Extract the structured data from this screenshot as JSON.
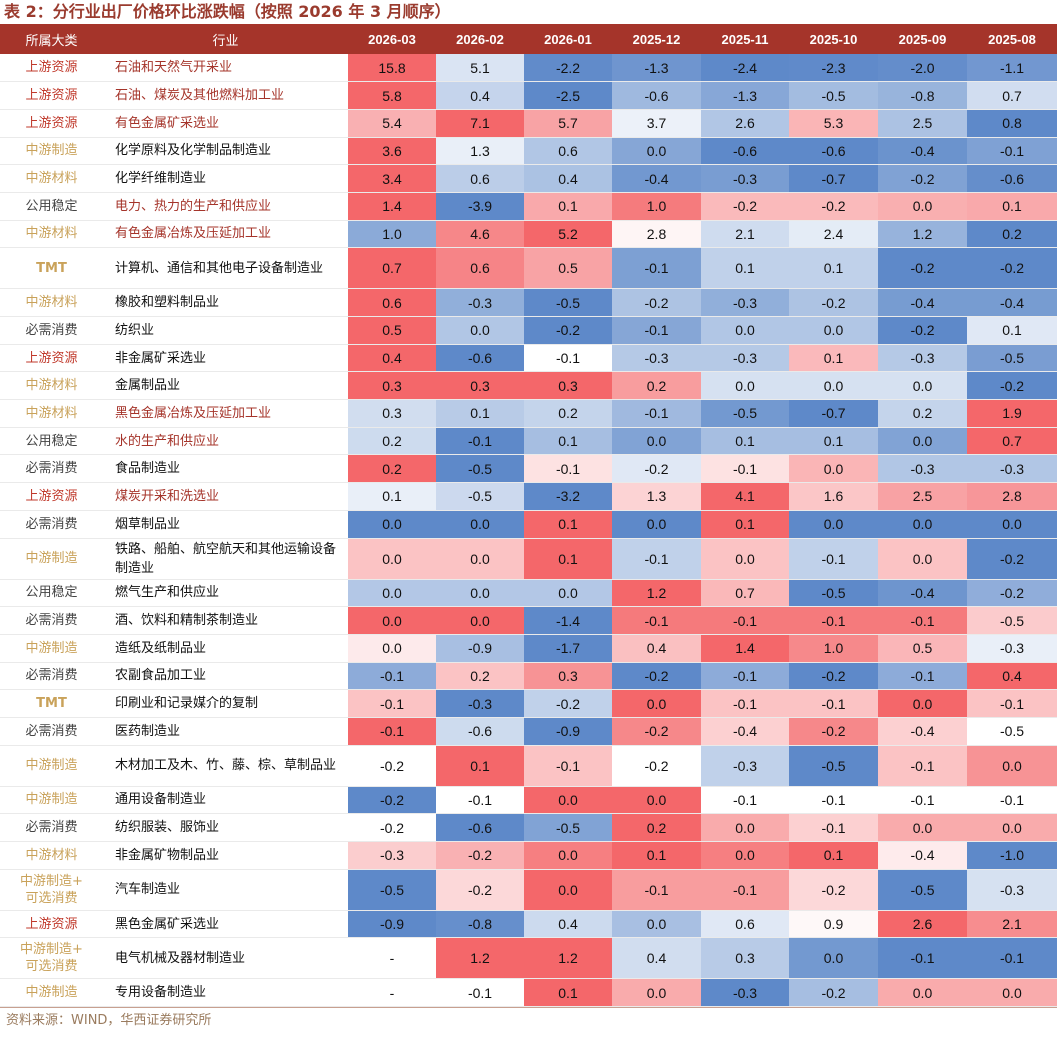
{
  "title": "表 2：分行业出厂价格环比涨跌幅（按照 2026 年 3 月顺序）",
  "footer": "资料来源：WIND，华西证券研究所",
  "colors": {
    "header_bg": "#a5342a",
    "positive_strong": "#f4676a",
    "negative_strong": "#5e89c9",
    "upstream_text": "#c0392b",
    "midstream_text": "#c9a25a"
  },
  "headers": {
    "category": "所属大类",
    "industry": "行业",
    "months": [
      "2026-03",
      "2026-02",
      "2026-01",
      "2025-12",
      "2025-11",
      "2025-10",
      "2025-09",
      "2025-08"
    ]
  },
  "rows": [
    {
      "category": "上游资源",
      "industry": "石油和天然气开采业",
      "values": [
        "15.8",
        "5.1",
        "-2.2",
        "-1.3",
        "-2.4",
        "-2.3",
        "-2.0",
        "-1.1"
      ]
    },
    {
      "category": "上游资源",
      "industry": "石油、煤炭及其他燃料加工业",
      "values": [
        "5.8",
        "0.4",
        "-2.5",
        "-0.6",
        "-1.3",
        "-0.5",
        "-0.8",
        "0.7"
      ]
    },
    {
      "category": "上游资源",
      "industry": "有色金属矿采选业",
      "values": [
        "5.4",
        "7.1",
        "5.7",
        "3.7",
        "2.6",
        "5.3",
        "2.5",
        "0.8"
      ]
    },
    {
      "category": "中游制造",
      "industry": "化学原料及化学制品制造业",
      "values": [
        "3.6",
        "1.3",
        "0.6",
        "0.0",
        "-0.6",
        "-0.6",
        "-0.4",
        "-0.1"
      ]
    },
    {
      "category": "中游材料",
      "industry": "化学纤维制造业",
      "values": [
        "3.4",
        "0.6",
        "0.4",
        "-0.4",
        "-0.3",
        "-0.7",
        "-0.2",
        "-0.6"
      ]
    },
    {
      "category": "公用稳定",
      "industry": "电力、热力的生产和供应业",
      "values": [
        "1.4",
        "-3.9",
        "0.1",
        "1.0",
        "-0.2",
        "-0.2",
        "0.0",
        "0.1"
      ]
    },
    {
      "category": "中游材料",
      "industry": "有色金属冶炼及压延加工业",
      "values": [
        "1.0",
        "4.6",
        "5.2",
        "2.8",
        "2.1",
        "2.4",
        "1.2",
        "0.2"
      ]
    },
    {
      "category": "TMT",
      "industry": "计算机、通信和其他电子设备制造业",
      "values": [
        "0.7",
        "0.6",
        "0.5",
        "-0.1",
        "0.1",
        "0.1",
        "-0.2",
        "-0.2"
      ]
    },
    {
      "category": "中游材料",
      "industry": "橡胶和塑料制品业",
      "values": [
        "0.6",
        "-0.3",
        "-0.5",
        "-0.2",
        "-0.3",
        "-0.2",
        "-0.4",
        "-0.4"
      ]
    },
    {
      "category": "必需消费",
      "industry": "纺织业",
      "values": [
        "0.5",
        "0.0",
        "-0.2",
        "-0.1",
        "0.0",
        "0.0",
        "-0.2",
        "0.1"
      ]
    },
    {
      "category": "上游资源",
      "industry": "非金属矿采选业",
      "values": [
        "0.4",
        "-0.6",
        "-0.1",
        "-0.3",
        "-0.3",
        "0.1",
        "-0.3",
        "-0.5"
      ]
    },
    {
      "category": "中游材料",
      "industry": "金属制品业",
      "values": [
        "0.3",
        "0.3",
        "0.3",
        "0.2",
        "0.0",
        "0.0",
        "0.0",
        "-0.2"
      ]
    },
    {
      "category": "中游材料",
      "industry": "黑色金属冶炼及压延加工业",
      "values": [
        "0.3",
        "0.1",
        "0.2",
        "-0.1",
        "-0.5",
        "-0.7",
        "0.2",
        "1.9"
      ]
    },
    {
      "category": "公用稳定",
      "industry": "水的生产和供应业",
      "values": [
        "0.2",
        "-0.1",
        "0.1",
        "0.0",
        "0.1",
        "0.1",
        "0.0",
        "0.7"
      ]
    },
    {
      "category": "必需消费",
      "industry": "食品制造业",
      "values": [
        "0.2",
        "-0.5",
        "-0.1",
        "-0.2",
        "-0.1",
        "0.0",
        "-0.3",
        "-0.3"
      ]
    },
    {
      "category": "上游资源",
      "industry": "煤炭开采和洗选业",
      "values": [
        "0.1",
        "-0.5",
        "-3.2",
        "1.3",
        "4.1",
        "1.6",
        "2.5",
        "2.8"
      ]
    },
    {
      "category": "必需消费",
      "industry": "烟草制品业",
      "values": [
        "0.0",
        "0.0",
        "0.1",
        "0.0",
        "0.1",
        "0.0",
        "0.0",
        "0.0"
      ]
    },
    {
      "category": "中游制造",
      "industry": "铁路、船舶、航空航天和其他运输设备制造业",
      "values": [
        "0.0",
        "0.0",
        "0.1",
        "-0.1",
        "0.0",
        "-0.1",
        "0.0",
        "-0.2"
      ]
    },
    {
      "category": "公用稳定",
      "industry": "燃气生产和供应业",
      "values": [
        "0.0",
        "0.0",
        "0.0",
        "1.2",
        "0.7",
        "-0.5",
        "-0.4",
        "-0.2"
      ]
    },
    {
      "category": "必需消费",
      "industry": "酒、饮料和精制茶制造业",
      "values": [
        "0.0",
        "0.0",
        "-1.4",
        "-0.1",
        "-0.1",
        "-0.1",
        "-0.1",
        "-0.5"
      ]
    },
    {
      "category": "中游制造",
      "industry": "造纸及纸制品业",
      "values": [
        "0.0",
        "-0.9",
        "-1.7",
        "0.4",
        "1.4",
        "1.0",
        "0.5",
        "-0.3"
      ]
    },
    {
      "category": "必需消费",
      "industry": "农副食品加工业",
      "values": [
        "-0.1",
        "0.2",
        "0.3",
        "-0.2",
        "-0.1",
        "-0.2",
        "-0.1",
        "0.4"
      ]
    },
    {
      "category": "TMT",
      "industry": "印刷业和记录媒介的复制",
      "values": [
        "-0.1",
        "-0.3",
        "-0.2",
        "0.0",
        "-0.1",
        "-0.1",
        "0.0",
        "-0.1"
      ]
    },
    {
      "category": "必需消费",
      "industry": "医药制造业",
      "values": [
        "-0.1",
        "-0.6",
        "-0.9",
        "-0.2",
        "-0.4",
        "-0.2",
        "-0.4",
        "-0.5"
      ]
    },
    {
      "category": "中游制造",
      "industry": "木材加工及木、竹、藤、棕、草制品业",
      "values": [
        "-0.2",
        "0.1",
        "-0.1",
        "-0.2",
        "-0.3",
        "-0.5",
        "-0.1",
        "0.0"
      ]
    },
    {
      "category": "中游制造",
      "industry": "通用设备制造业",
      "values": [
        "-0.2",
        "-0.1",
        "0.0",
        "0.0",
        "-0.1",
        "-0.1",
        "-0.1",
        "-0.1"
      ]
    },
    {
      "category": "必需消费",
      "industry": "纺织服装、服饰业",
      "values": [
        "-0.2",
        "-0.6",
        "-0.5",
        "0.2",
        "0.0",
        "-0.1",
        "0.0",
        "0.0"
      ]
    },
    {
      "category": "中游材料",
      "industry": "非金属矿物制品业",
      "values": [
        "-0.3",
        "-0.2",
        "0.0",
        "0.1",
        "0.0",
        "0.1",
        "-0.4",
        "-1.0"
      ]
    },
    {
      "category": "中游制造+可选消费",
      "industry": "汽车制造业",
      "values": [
        "-0.5",
        "-0.2",
        "0.0",
        "-0.1",
        "-0.1",
        "-0.2",
        "-0.5",
        "-0.3"
      ]
    },
    {
      "category": "上游资源",
      "industry": "黑色金属矿采选业",
      "values": [
        "-0.9",
        "-0.8",
        "0.4",
        "0.0",
        "0.6",
        "0.9",
        "2.6",
        "2.1"
      ]
    },
    {
      "category": "中游制造+可选消费",
      "industry": "电气机械及器材制造业",
      "values": [
        "-",
        "1.2",
        "1.2",
        "0.4",
        "0.3",
        "0.0",
        "-0.1",
        "-0.1"
      ]
    },
    {
      "category": "中游制造",
      "industry": "专用设备制造业",
      "values": [
        "-",
        "-0.1",
        "0.1",
        "0.0",
        "-0.3",
        "-0.2",
        "0.0",
        "0.0"
      ]
    }
  ]
}
